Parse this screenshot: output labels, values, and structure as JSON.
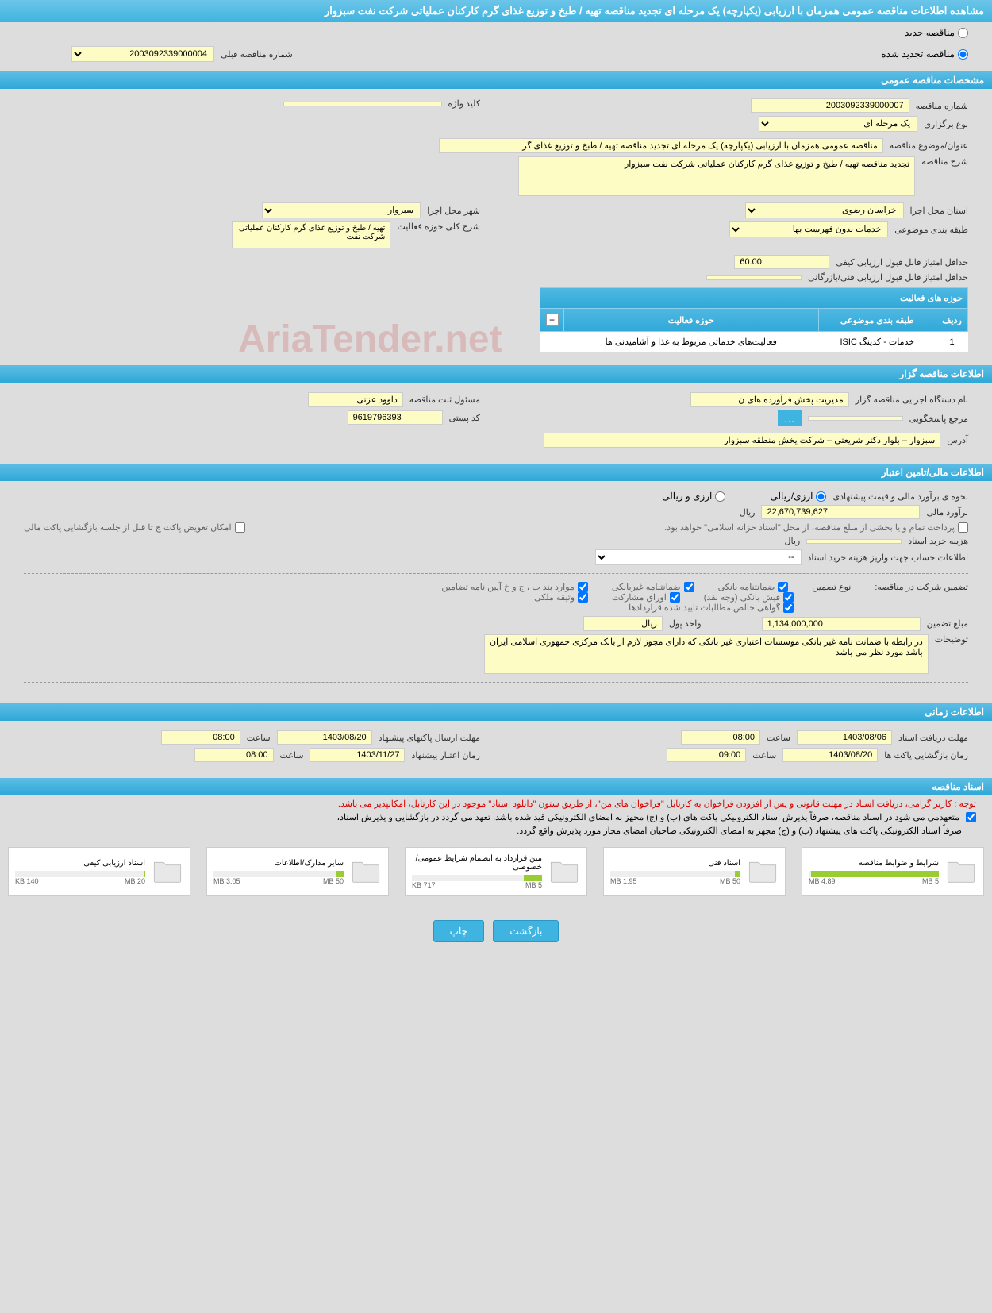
{
  "page_title": "مشاهده اطلاعات مناقصه عمومی همزمان با ارزیابی (یکپارچه) یک مرحله ای تجدید مناقصه تهیه / طبخ و توزیع غذای گرم کارکنان عملیاتی شرکت نفت سبزوار",
  "status": {
    "new": "مناقصه جدید",
    "renewed": "مناقصه تجدید شده",
    "prev_num_label": "شماره مناقصه قبلی",
    "prev_num": "2003092339000004"
  },
  "sections": {
    "general": "مشخصات مناقصه عمومی",
    "activity": "حوزه های فعالیت",
    "organizer": "اطلاعات مناقصه گزار",
    "financial": "اطلاعات مالی/تامین اعتبار",
    "timing": "اطلاعات زمانی",
    "documents": "اسناد مناقصه"
  },
  "general": {
    "number_label": "شماره مناقصه",
    "number": "2003092339000007",
    "keyword_label": "کلید واژه",
    "keyword": "",
    "type_label": "نوع برگزاری",
    "type": "یک مرحله ای",
    "title_label": "عنوان/موضوع مناقصه",
    "title": "مناقصه عمومی همزمان با ارزیابی (یکپارچه) یک مرحله ای تجدید مناقصه تهیه / طبخ و توزیع غذای گر",
    "desc_label": "شرح مناقصه",
    "desc": "تجدید مناقصه تهیه / طبخ و توزیع غذای گرم کارکنان عملیاتی شرکت نفت  سبزوار",
    "province_label": "استان محل اجرا",
    "province": "خراسان رضوی",
    "city_label": "شهر محل اجرا",
    "city": "سبزوار",
    "subject_class_label": "طبقه بندی موضوعی",
    "subject_class": "خدمات بدون فهرست بها",
    "activity_desc_label": "شرح کلی حوزه فعالیت",
    "activity_desc": "تهیه / طبخ و توزیع غذای گرم کارکنان عملیاتی شرکت نفت",
    "min_quality_label": "حداقل امتیاز قابل قبول ارزیابی کیفی",
    "min_quality": "60.00",
    "min_tech_label": "حداقل امتیاز قابل قبول ارزیابی فنی/بازرگانی",
    "min_tech": ""
  },
  "activity_table": {
    "col_row": "ردیف",
    "col_subject": "طبقه بندی موضوعی",
    "col_area": "حوزه فعالیت",
    "rows": [
      {
        "idx": "1",
        "subject": "خدمات - کدینگ ISIC",
        "area": "فعالیت‌های خدماتی مربوط به غذا و آشامیدنی ها"
      }
    ]
  },
  "organizer": {
    "exec_label": "نام دستگاه اجرایی مناقصه گزار",
    "exec": "مدیریت پخش فرآورده های ن",
    "registrar_label": "مسئول ثبت مناقصه",
    "registrar": "داوود عزتی",
    "ref_label": "مرجع پاسخگویی",
    "postal_label": "کد پستی",
    "postal": "9619796393",
    "address_label": "آدرس",
    "address": "سبزوار – بلوار دکتر شریعتی – شرکت پخش منطقه سبزوار"
  },
  "financial": {
    "method_label": "نحوه ی برآورد مالی و قیمت پیشنهادی",
    "opt_rial": "ارزی/ریالی",
    "opt_both": "ارزی و ریالی",
    "est_label": "برآورد مالی",
    "est_value": "22,670,739,627",
    "currency": "ریال",
    "payment_note": "پرداخت تمام و یا بخشی از مبلغ مناقصه، از محل \"اسناد خزانه اسلامی\" خواهد بود.",
    "replace_label": "امکان تعویض پاکت ج تا قبل از جلسه بازگشایی پاکت مالی",
    "purchase_cost_label": "هزینه خرید اسناد",
    "purchase_cost": "",
    "account_label": "اطلاعات حساب جهت واریز هزینه خرید اسناد",
    "account_sel": "--",
    "guarantee_title": "تضمین شرکت در مناقصه:",
    "guarantee_type_label": "نوع تضمین",
    "g_bank": "ضمانتنامه بانکی",
    "g_nonbank": "ضمانتنامه غیربانکی",
    "g_items": "موارد بند ب ، ج و خ آیین نامه تضامین",
    "g_cash": "فیش بانکی (وجه نقد)",
    "g_bonds": "اوراق مشارکت",
    "g_property": "وثیقه ملکی",
    "g_certified": "گواهی خالص مطالبات تایید شده قراردادها",
    "g_amount_label": "مبلغ تضمین",
    "g_amount": "1,134,000,000",
    "g_unit_label": "واحد پول",
    "g_unit": "ریال",
    "notes_label": "توضیحات",
    "notes": "در رابطه با ضمانت نامه غیر بانکی موسسات اعتباری غیر بانکی که دارای مجوز لازم از بانک مرکزی جمهوری اسلامی ایران باشد مورد نظر می باشد"
  },
  "timing": {
    "receive_label": "مهلت دریافت اسناد",
    "receive_date": "1403/08/06",
    "receive_time_label": "ساعت",
    "receive_time": "08:00",
    "send_label": "مهلت ارسال پاکتهای پیشنهاد",
    "send_date": "1403/08/20",
    "send_time": "08:00",
    "open_label": "زمان بازگشایی پاکت ها",
    "open_date": "1403/08/20",
    "open_time": "09:00",
    "validity_label": "زمان اعتبار پیشنهاد",
    "validity_date": "1403/11/27",
    "validity_time": "08:00"
  },
  "documents": {
    "note1": "توجه : کاربر گرامی، دریافت اسناد در مهلت قانونی و پس از افزودن فراخوان به کارتابل \"فراخوان های من\"، از طریق ستون \"دانلود اسناد\" موجود در این کارتابل، امکانپذیر می باشد.",
    "commit1": "متعهدمی می شود در اسناد مناقصه، صرفاً پذیرش اسناد الکترونیکی پاکت های (ب) و (ج) مجهز به امضای الکترونیکی قید شده باشد. تعهد می گردد در بازگشایی و پذیرش اسناد،",
    "commit2": "صرفاً اسناد الکترونیکی پاکت های پیشنهاد (ب) و (ج) مجهز به امضای الکترونیکی صاحبان امضای مجاز مورد پذیرش واقع گردد.",
    "items": [
      {
        "name": "شرایط و ضوابط مناقصه",
        "size": "4.89 MB",
        "max": "5 MB",
        "fill": 98
      },
      {
        "name": "اسناد فنی",
        "size": "1.95 MB",
        "max": "50 MB",
        "fill": 4
      },
      {
        "name": "متن قرارداد به انضمام شرایط عمومی/خصوصی",
        "size": "717 KB",
        "max": "5 MB",
        "fill": 14
      },
      {
        "name": "سایر مدارک/اطلاعات",
        "size": "3.05 MB",
        "max": "50 MB",
        "fill": 6
      },
      {
        "name": "اسناد ارزیابی کیفی",
        "size": "140 KB",
        "max": "20 MB",
        "fill": 1
      }
    ]
  },
  "buttons": {
    "back": "بازگشت",
    "print": "چاپ"
  },
  "watermark": "AriaTender.net"
}
